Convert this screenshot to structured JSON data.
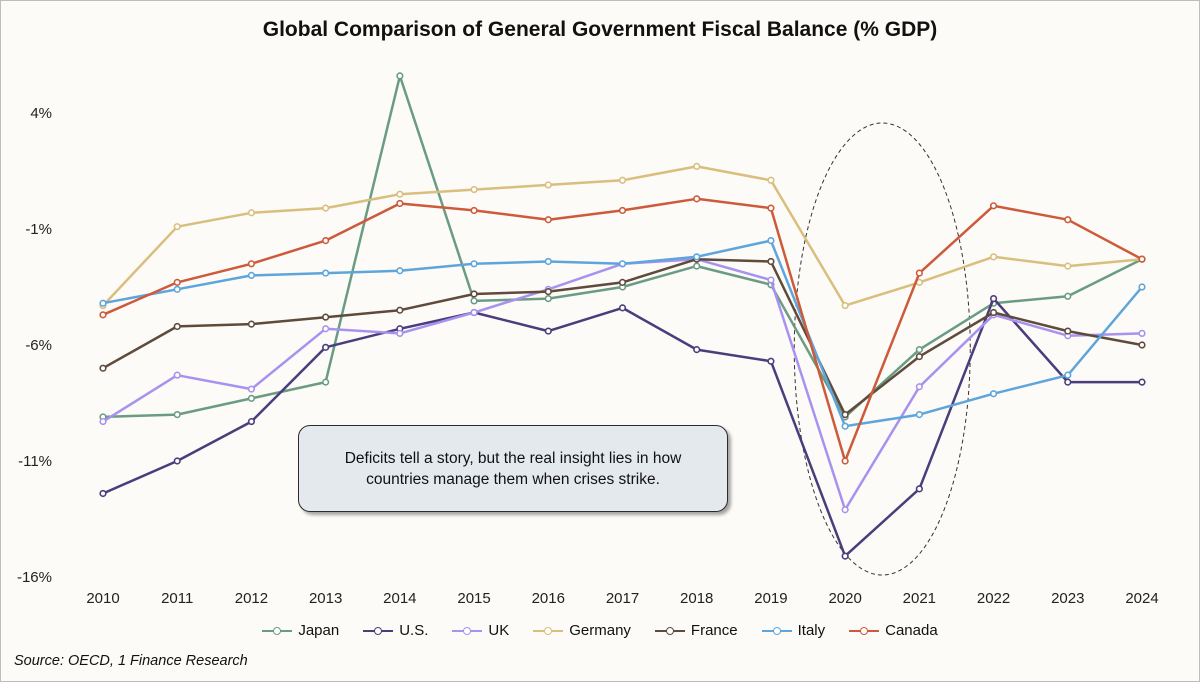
{
  "chart_data": {
    "type": "line",
    "title": "Global Comparison of General Government Fiscal Balance (% GDP)",
    "xlabel": "",
    "ylabel": "",
    "x": [
      "2010",
      "2011",
      "2012",
      "2013",
      "2014",
      "2015",
      "2016",
      "2017",
      "2018",
      "2019",
      "2020",
      "2021",
      "2022",
      "2023",
      "2024"
    ],
    "ylim": [
      -16,
      6
    ],
    "yticks": [
      4,
      -1,
      -6,
      -11,
      -16
    ],
    "ytick_labels": [
      "4%",
      "-1%",
      "-6%",
      "-11%",
      "-16%"
    ],
    "grid": false,
    "legend_position": "bottom",
    "series": [
      {
        "name": "Japan",
        "color": "#6a9c84",
        "values": [
          -9.1,
          -9.0,
          -8.3,
          -7.6,
          5.6,
          -4.1,
          -4.0,
          -3.5,
          -2.6,
          -3.4,
          -9.1,
          -6.2,
          -4.2,
          -3.9,
          -2.3
        ]
      },
      {
        "name": "U.S.",
        "color": "#4a3d7c",
        "values": [
          -12.4,
          -11.0,
          -9.3,
          -6.1,
          -5.3,
          -4.6,
          -5.4,
          -4.4,
          -6.2,
          -6.7,
          -15.1,
          -12.2,
          -4.0,
          -7.6,
          -7.6
        ]
      },
      {
        "name": "UK",
        "color": "#a892f0",
        "values": [
          -9.3,
          -7.3,
          -7.9,
          -5.3,
          -5.5,
          -4.6,
          -3.6,
          -2.5,
          -2.3,
          -3.2,
          -13.1,
          -7.8,
          -4.7,
          -5.6,
          -5.5
        ]
      },
      {
        "name": "Germany",
        "color": "#d9be7e",
        "values": [
          -4.3,
          -0.9,
          -0.3,
          -0.1,
          0.5,
          0.7,
          0.9,
          1.1,
          1.7,
          1.1,
          -4.3,
          -3.3,
          -2.2,
          -2.6,
          -2.3
        ]
      },
      {
        "name": "France",
        "color": "#5f4a3c",
        "values": [
          -7.0,
          -5.2,
          -5.1,
          -4.8,
          -4.5,
          -3.8,
          -3.7,
          -3.3,
          -2.3,
          -2.4,
          -9.0,
          -6.5,
          -4.6,
          -5.4,
          -6.0
        ]
      },
      {
        "name": "Italy",
        "color": "#5ea5dc",
        "values": [
          -4.2,
          -3.6,
          -3.0,
          -2.9,
          -2.8,
          -2.5,
          -2.4,
          -2.5,
          -2.2,
          -1.5,
          -9.5,
          -9.0,
          -8.1,
          -7.3,
          -3.5
        ]
      },
      {
        "name": "Canada",
        "color": "#cd5a3b",
        "values": [
          -4.7,
          -3.3,
          -2.5,
          -1.5,
          0.1,
          -0.2,
          -0.6,
          -0.2,
          0.3,
          -0.1,
          -11.0,
          -2.9,
          0.0,
          -0.6,
          -2.3
        ]
      }
    ],
    "annotations": [
      {
        "type": "highlight-ellipse",
        "x_range": [
          "2020",
          "2021"
        ]
      }
    ]
  },
  "annotation_text": "Deficits tell a story, but the real insight lies in how countries manage them when crises strike.",
  "source": "Source: OECD, 1 Finance Research"
}
